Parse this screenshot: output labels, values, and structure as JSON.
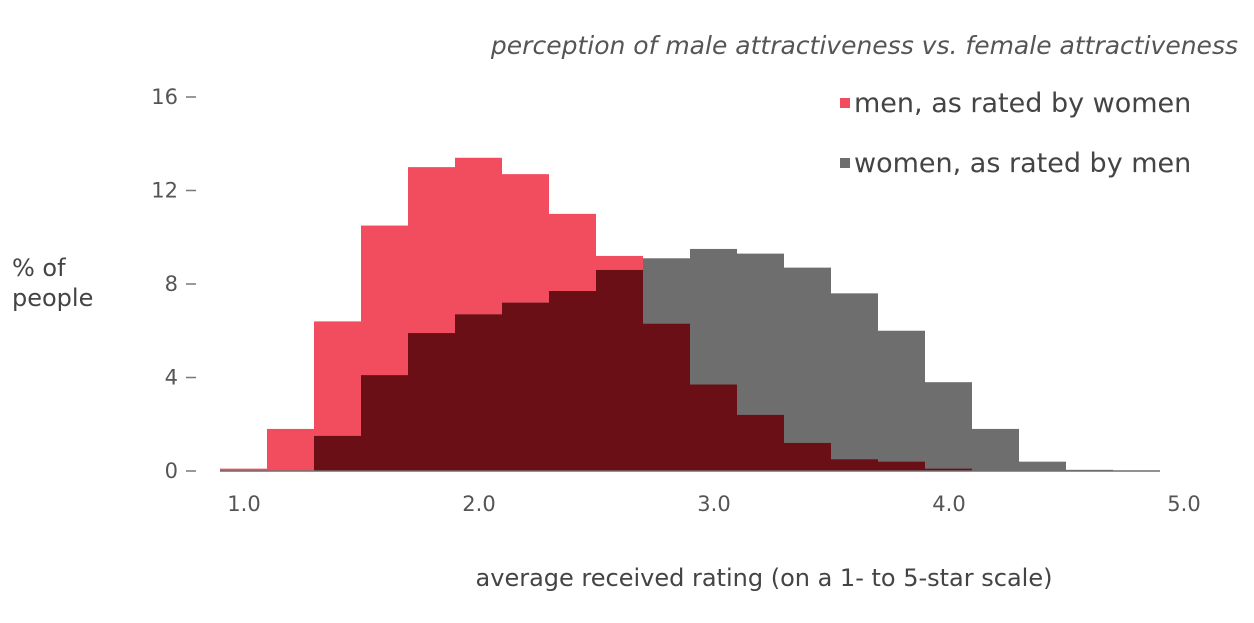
{
  "chart_data": {
    "type": "bar",
    "title": "perception of male attractiveness vs. female attractiveness",
    "xlabel": "average received rating (on a 1- to 5-star scale)",
    "ylabel": [
      "% of",
      "people"
    ],
    "xlim": [
      1.0,
      5.0
    ],
    "ylim": [
      0,
      16
    ],
    "bin_width": 0.2,
    "x_ticks": [
      "1.0",
      "2.0",
      "3.0",
      "4.0",
      "5.0"
    ],
    "y_ticks": [
      "0",
      "4",
      "8",
      "12",
      "16"
    ],
    "grid": false,
    "legend_position": "top-right",
    "overlap_color": "#6b0f17",
    "series": [
      {
        "name": "men, as rated by women",
        "color": "#f24d5e",
        "bins": [
          {
            "x0": 1.0,
            "value": 0.1
          },
          {
            "x0": 1.2,
            "value": 1.8
          },
          {
            "x0": 1.4,
            "value": 6.4
          },
          {
            "x0": 1.6,
            "value": 10.5
          },
          {
            "x0": 1.8,
            "value": 13.0
          },
          {
            "x0": 2.0,
            "value": 13.4
          },
          {
            "x0": 2.2,
            "value": 12.7
          },
          {
            "x0": 2.4,
            "value": 11.0
          },
          {
            "x0": 2.6,
            "value": 9.2
          },
          {
            "x0": 2.8,
            "value": 6.3
          },
          {
            "x0": 3.0,
            "value": 3.7
          },
          {
            "x0": 3.2,
            "value": 2.4
          },
          {
            "x0": 3.4,
            "value": 1.2
          },
          {
            "x0": 3.6,
            "value": 0.5
          },
          {
            "x0": 3.8,
            "value": 0.4
          },
          {
            "x0": 4.0,
            "value": 0.1
          }
        ]
      },
      {
        "name": "women, as rated by men",
        "color": "#6e6e6e",
        "bins": [
          {
            "x0": 1.4,
            "value": 1.5
          },
          {
            "x0": 1.6,
            "value": 4.1
          },
          {
            "x0": 1.8,
            "value": 5.9
          },
          {
            "x0": 2.0,
            "value": 6.7
          },
          {
            "x0": 2.2,
            "value": 7.2
          },
          {
            "x0": 2.4,
            "value": 7.7
          },
          {
            "x0": 2.6,
            "value": 8.6
          },
          {
            "x0": 2.8,
            "value": 9.1
          },
          {
            "x0": 3.0,
            "value": 9.5
          },
          {
            "x0": 3.2,
            "value": 9.3
          },
          {
            "x0": 3.4,
            "value": 8.7
          },
          {
            "x0": 3.6,
            "value": 7.6
          },
          {
            "x0": 3.8,
            "value": 6.0
          },
          {
            "x0": 4.0,
            "value": 3.8
          },
          {
            "x0": 4.2,
            "value": 1.8
          },
          {
            "x0": 4.4,
            "value": 0.4
          },
          {
            "x0": 4.6,
            "value": 0.05
          }
        ]
      }
    ]
  }
}
